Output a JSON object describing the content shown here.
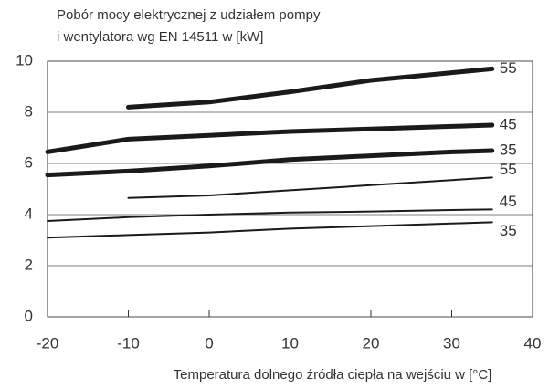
{
  "chart_data": {
    "type": "line",
    "title": [
      "Pobór mocy elektrycznej z udziałem pompy",
      "i wentylatora wg EN 14511 w [kW]"
    ],
    "x_label": "Temperatura dolnego źródła ciepła na wejściu w [°C]",
    "x": [
      -20,
      -10,
      0,
      10,
      20,
      30,
      35
    ],
    "series": [
      {
        "name": "55",
        "color": "#1a1a1a",
        "line_width": 5,
        "values": [
          null,
          8.2,
          8.4,
          8.8,
          9.25,
          9.55,
          9.7
        ]
      },
      {
        "name": "45",
        "color": "#1a1a1a",
        "line_width": 5,
        "values": [
          6.45,
          6.95,
          7.1,
          7.25,
          7.35,
          7.45,
          7.5
        ]
      },
      {
        "name": "35",
        "color": "#1a1a1a",
        "line_width": 5,
        "values": [
          5.55,
          5.7,
          5.9,
          6.15,
          6.3,
          6.45,
          6.5
        ]
      },
      {
        "name": "55",
        "color": "#1a1a1a",
        "line_width": 2,
        "values": [
          null,
          4.65,
          4.75,
          4.95,
          5.15,
          5.35,
          5.45
        ]
      },
      {
        "name": "45",
        "color": "#1a1a1a",
        "line_width": 2,
        "values": [
          3.75,
          3.9,
          4.0,
          4.08,
          4.12,
          4.18,
          4.2
        ]
      },
      {
        "name": "35",
        "color": "#1a1a1a",
        "line_width": 2,
        "values": [
          3.1,
          3.2,
          3.3,
          3.45,
          3.55,
          3.65,
          3.7
        ]
      }
    ],
    "xlim": [
      -20,
      40
    ],
    "xticks": [
      -20,
      -10,
      0,
      10,
      20,
      30,
      40
    ],
    "ylim": [
      0,
      10
    ],
    "yticks": [
      0,
      2,
      4,
      6,
      8,
      10
    ],
    "grid": true
  }
}
